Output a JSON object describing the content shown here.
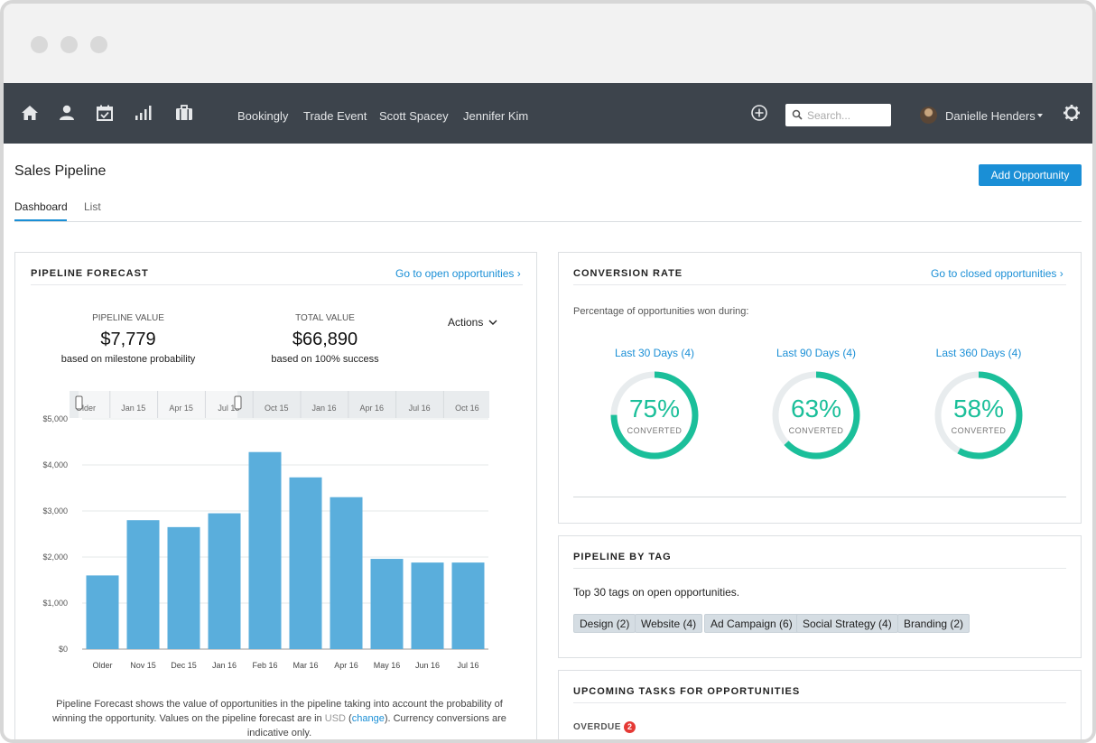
{
  "nav": {
    "links": [
      "Bookingly",
      "Trade Event",
      "Scott Spacey",
      "Jennifer Kim"
    ],
    "search_placeholder": "Search...",
    "user_name": "Danielle Henders",
    "icons": [
      "home-icon",
      "contacts-icon",
      "calendar-icon",
      "reports-icon",
      "briefcase-icon",
      "add-icon",
      "search-icon",
      "gear-icon"
    ]
  },
  "page": {
    "title": "Sales Pipeline",
    "add_button": "Add Opportunity",
    "tabs": [
      {
        "label": "Dashboard",
        "active": true
      },
      {
        "label": "List",
        "active": false
      }
    ]
  },
  "pipeline_forecast": {
    "title": "PIPELINE FORECAST",
    "link": "Go to open opportunities ›",
    "pipeline_label": "PIPELINE VALUE",
    "pipeline_value": "$7,779",
    "pipeline_sub": "based on milestone probability",
    "total_label": "TOTAL VALUE",
    "total_value": "$66,890",
    "total_sub": "based on 100% success",
    "actions": "Actions",
    "timeline_labels": [
      "Older",
      "Jan 15",
      "Apr 15",
      "Jul 15",
      "Oct 15",
      "Jan 16",
      "Apr 16",
      "Jul 16",
      "Oct 16"
    ],
    "footnote_1": "Pipeline Forecast shows the value of opportunities in the pipeline taking into account the probability of winning the opportunity. Values on the pipeline forecast are in",
    "footnote_currency": "USD",
    "footnote_change": "change",
    "footnote_2": "). Currency conversions are indicative only."
  },
  "chart_data": {
    "type": "bar",
    "title": "",
    "xlabel": "",
    "ylabel": "",
    "categories": [
      "Older",
      "Nov 15",
      "Dec 15",
      "Jan 16",
      "Feb 16",
      "Mar 16",
      "Apr 16",
      "May 16",
      "Jun 16",
      "Jul 16"
    ],
    "values": [
      1600,
      2800,
      2650,
      2950,
      4280,
      3730,
      3300,
      1960,
      1880,
      1880
    ],
    "ylim": [
      0,
      5000
    ],
    "yticks": [
      0,
      1000,
      2000,
      3000,
      4000,
      5000
    ],
    "ytick_labels": [
      "$0",
      "$1,000",
      "$2,000",
      "$3,000",
      "$4,000",
      "$5,000"
    ],
    "grid": true,
    "bar_color": "#5aaedc"
  },
  "conversion_rate": {
    "title": "CONVERSION RATE",
    "link": "Go to closed opportunities ›",
    "subtitle": "Percentage of opportunities won during:",
    "rings": [
      {
        "label": "Last 30 Days (4)",
        "percent": "75%",
        "value": 0.75,
        "caption": "CONVERTED"
      },
      {
        "label": "Last 90 Days (4)",
        "percent": "63%",
        "value": 0.63,
        "caption": "CONVERTED"
      },
      {
        "label": "Last 360 Days (4)",
        "percent": "58%",
        "value": 0.58,
        "caption": "CONVERTED"
      }
    ],
    "ring_color": "#1bbf9a",
    "ring_track": "#e8ecee"
  },
  "pipeline_by_tag": {
    "title": "PIPELINE BY TAG",
    "subtitle": "Top 30 tags on open opportunities.",
    "tags": [
      "Design (2)",
      "Website (4)",
      "Ad Campaign (6)",
      "Social Strategy (4)",
      "Branding (2)"
    ]
  },
  "upcoming_tasks": {
    "title": "UPCOMING TASKS FOR OPPORTUNITIES",
    "overdue_label": "OVERDUE",
    "overdue_count": "2"
  },
  "colors": {
    "nav_bg": "#3d444c",
    "accent": "#1a8fd6"
  }
}
